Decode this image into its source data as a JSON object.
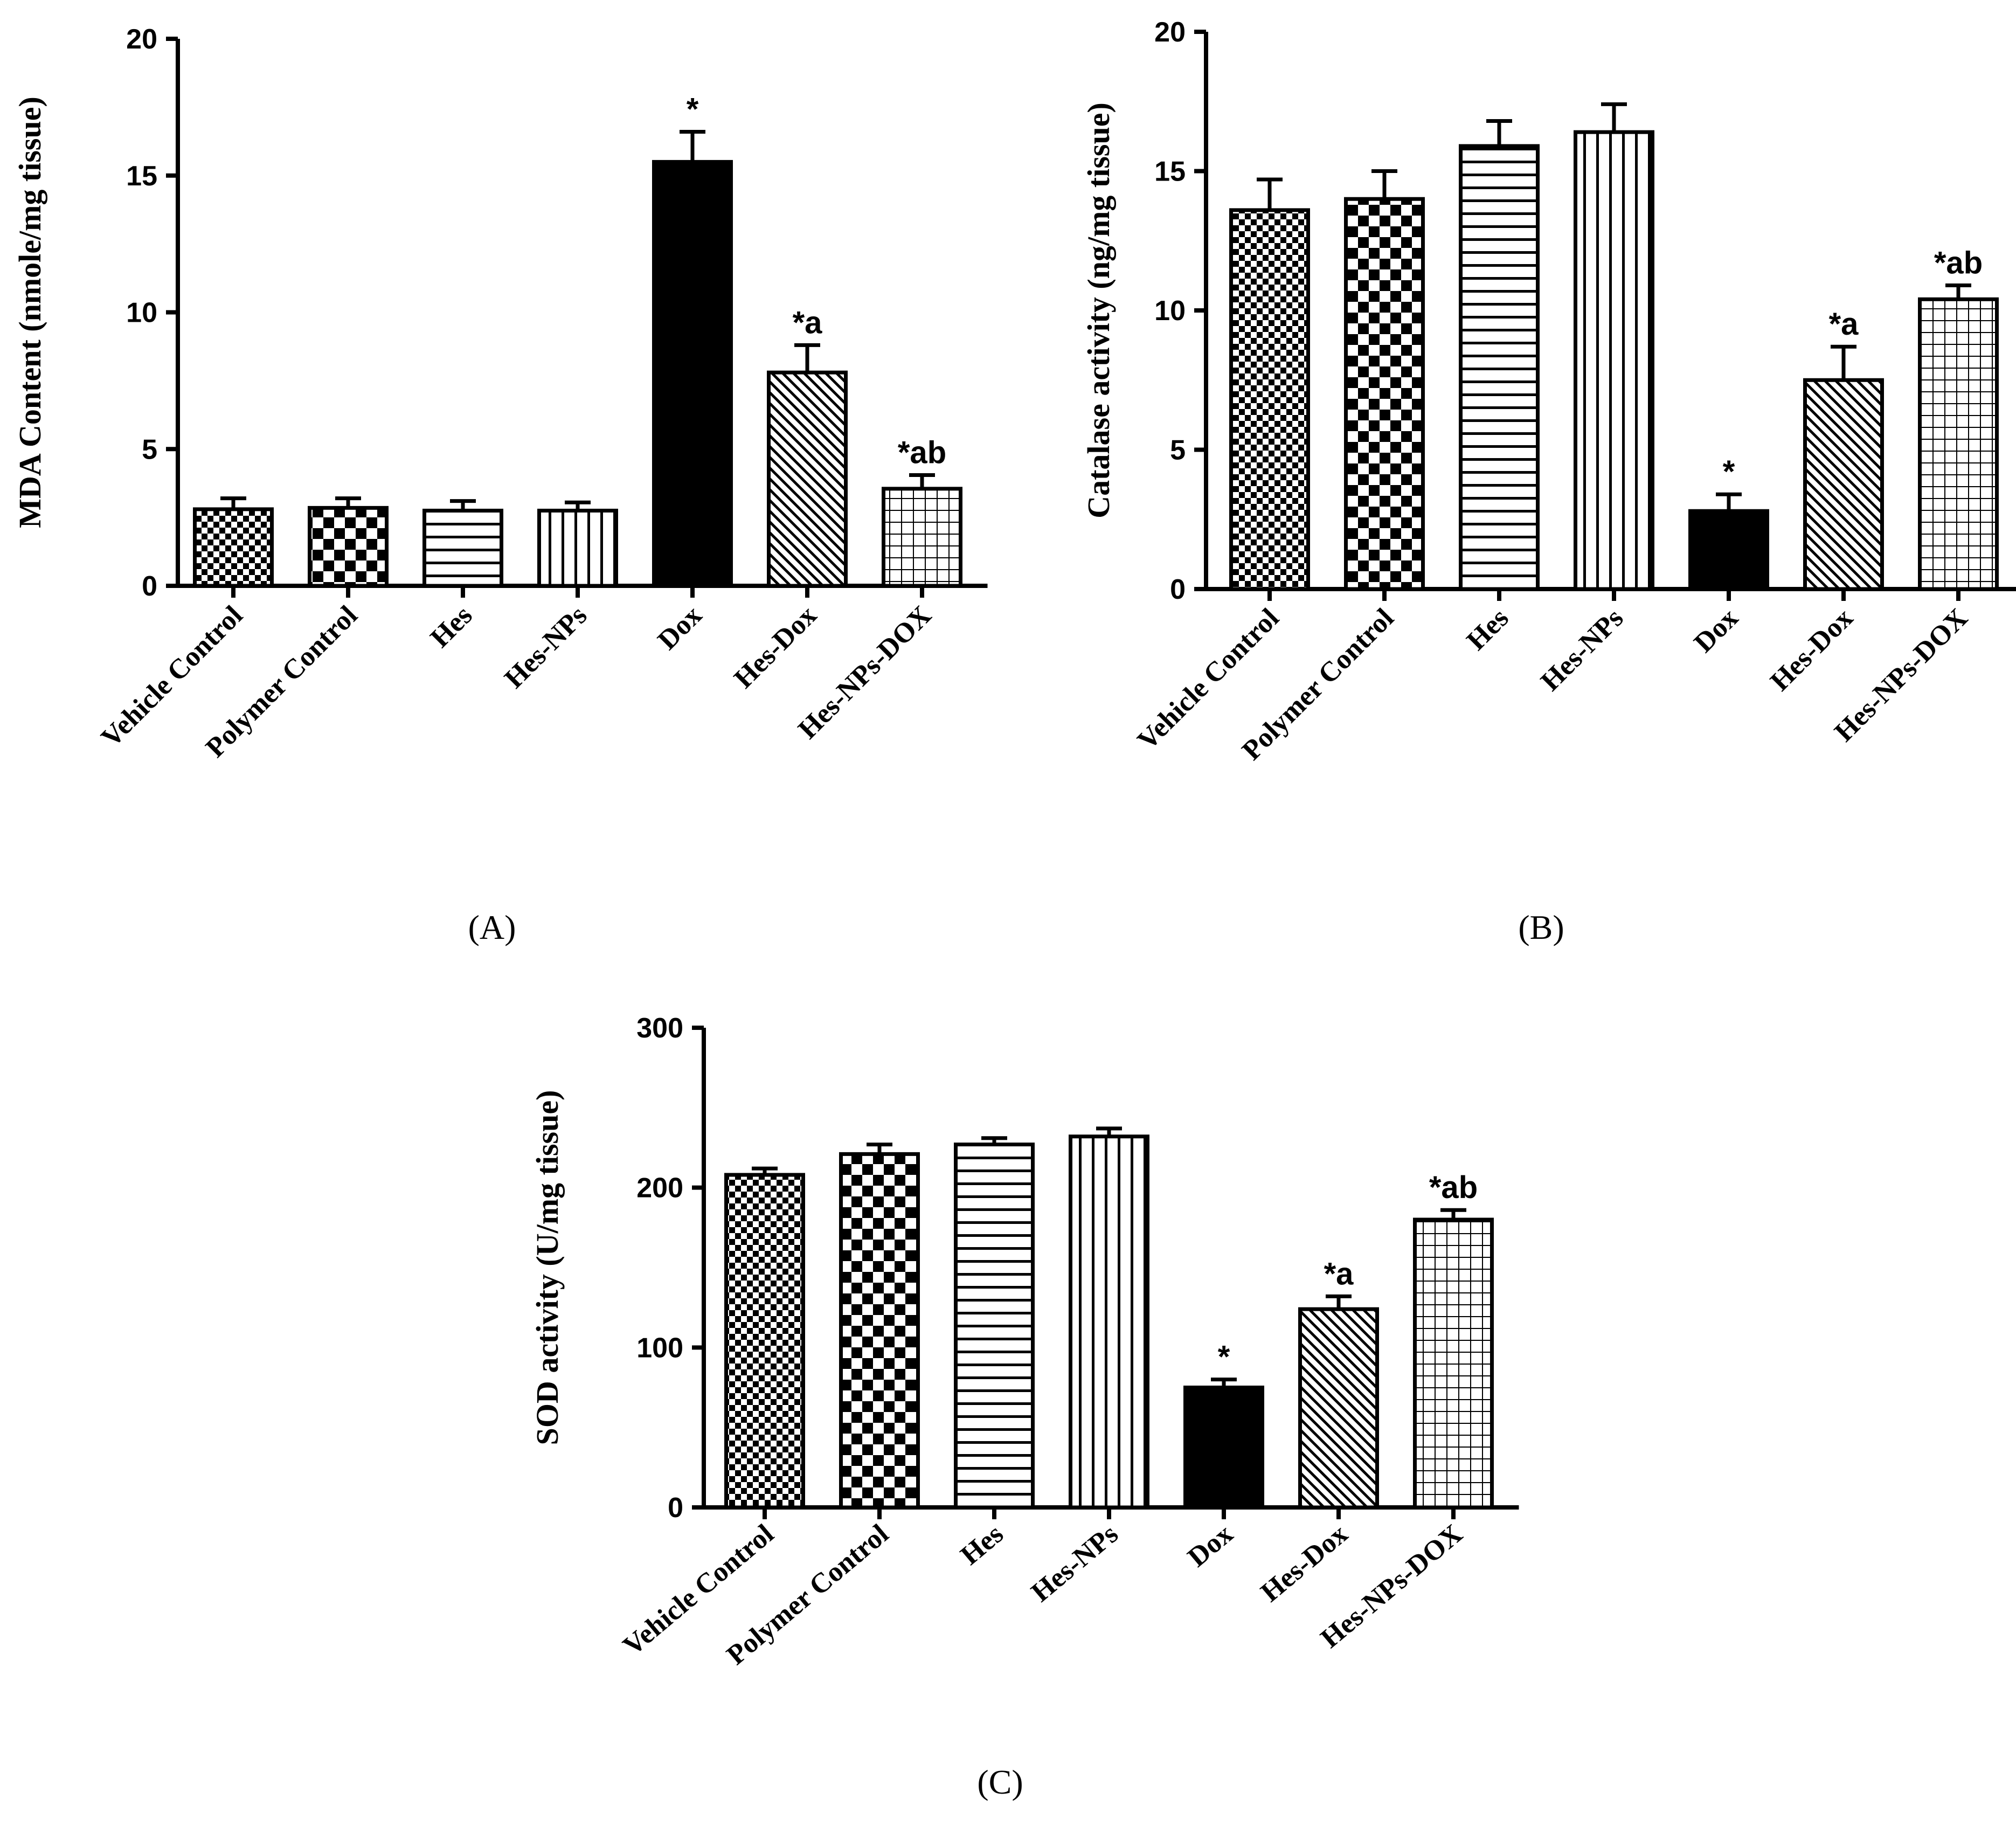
{
  "chart_data": [
    {
      "type": "bar",
      "panel": "(A)",
      "ylabel": "MDA Content (nmole/mg tissue)",
      "ylim": [
        0,
        20
      ],
      "yticks": [
        "0",
        "5",
        "10",
        "15",
        "20"
      ],
      "categories": [
        "Vehicle Control",
        "Polymer Control",
        "Hes",
        "Hes-NPs",
        "Dox",
        "Hes-Dox",
        "Hes-NPs-DOX"
      ],
      "values": [
        2.8,
        2.85,
        2.75,
        2.75,
        15.5,
        7.8,
        3.55
      ],
      "errors": [
        0.4,
        0.35,
        0.35,
        0.3,
        1.1,
        1.0,
        0.5
      ],
      "annotations": [
        "",
        "",
        "",
        "",
        "*",
        "*a",
        "*ab"
      ]
    },
    {
      "type": "bar",
      "panel": "(B)",
      "ylabel": "Catalase activity (ng/mg tissue)",
      "ylim": [
        0,
        20
      ],
      "yticks": [
        "0",
        "5",
        "10",
        "15",
        "20"
      ],
      "categories": [
        "Vehicle Control",
        "Polymer Control",
        "Hes",
        "Hes-NPs",
        "Dox",
        "Hes-Dox",
        "Hes-NPs-DOX"
      ],
      "values": [
        13.6,
        14.0,
        15.9,
        16.4,
        2.8,
        7.5,
        10.4
      ],
      "errors": [
        1.1,
        1.0,
        0.9,
        1.0,
        0.6,
        1.2,
        0.5
      ],
      "annotations": [
        "",
        "",
        "",
        "",
        "*",
        "*a",
        "*ab"
      ]
    },
    {
      "type": "bar",
      "panel": "(C)",
      "ylabel": "SOD activity (U/mg tissue)",
      "ylim": [
        0,
        300
      ],
      "yticks": [
        "0",
        "100",
        "200",
        "300"
      ],
      "categories": [
        "Vehicle Control",
        "Polymer Control",
        "Hes",
        "Hes-NPs",
        "Dox",
        "Hes-Dox",
        "Hes-NPs-DOX"
      ],
      "values": [
        208,
        221,
        227,
        232,
        75,
        124,
        180
      ],
      "errors": [
        4,
        6,
        4,
        5,
        5,
        8,
        6
      ],
      "annotations": [
        "",
        "",
        "",
        "",
        "*",
        "*a",
        "*ab"
      ]
    }
  ]
}
